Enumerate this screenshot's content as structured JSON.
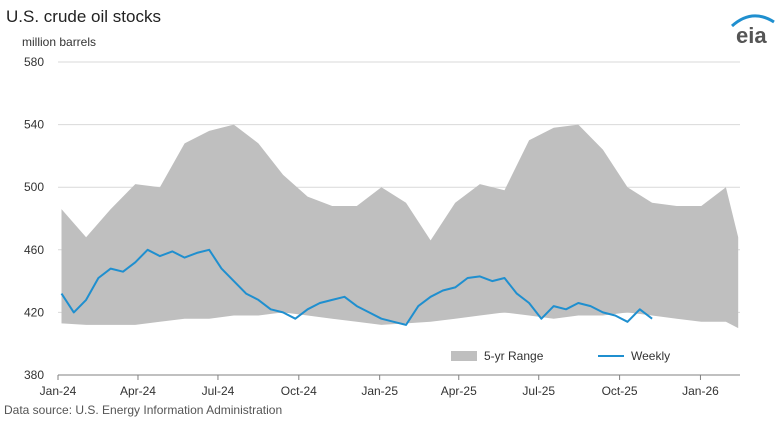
{
  "title": "U.S. crude oil stocks",
  "unit_label": "million barrels",
  "source": "Data source: U.S. Energy Information Administration",
  "logo_text": "eia",
  "colors": {
    "range": "#bfbfbf",
    "weekly": "#1f8fcf",
    "grid": "#d9d9d9",
    "axis": "#808080",
    "logo": "#555555",
    "logo_accent": "#1f8fcf"
  },
  "chart_data": {
    "type": "area",
    "title": "U.S. crude oil stocks",
    "ylabel": "million barrels",
    "xlabel": "",
    "ylim": [
      380,
      580
    ],
    "yticks": [
      380,
      420,
      460,
      500,
      540,
      580
    ],
    "xlim": [
      "2024-01-01",
      "2026-02-15"
    ],
    "xticks": [
      {
        "label": "Jan-24",
        "date": "2024-01-01"
      },
      {
        "label": "Apr-24",
        "date": "2024-04-01"
      },
      {
        "label": "Jul-24",
        "date": "2024-07-01"
      },
      {
        "label": "Oct-24",
        "date": "2024-10-01"
      },
      {
        "label": "Jan-25",
        "date": "2025-01-01"
      },
      {
        "label": "Apr-25",
        "date": "2025-04-01"
      },
      {
        "label": "Jul-25",
        "date": "2025-07-01"
      },
      {
        "label": "Oct-25",
        "date": "2025-10-01"
      },
      {
        "label": "Jan-26",
        "date": "2026-01-01"
      }
    ],
    "grid": true,
    "legend_position": "bottom-right",
    "series": [
      {
        "name": "5-yr Range",
        "kind": "band",
        "x": [
          "2024-01-05",
          "2024-02-02",
          "2024-03-01",
          "2024-03-29",
          "2024-04-26",
          "2024-05-24",
          "2024-06-21",
          "2024-07-19",
          "2024-08-16",
          "2024-09-13",
          "2024-10-11",
          "2024-11-08",
          "2024-12-06",
          "2025-01-03",
          "2025-01-31",
          "2025-02-28",
          "2025-03-28",
          "2025-04-25",
          "2025-05-23",
          "2025-06-20",
          "2025-07-18",
          "2025-08-15",
          "2025-09-12",
          "2025-10-10",
          "2025-11-07",
          "2025-12-05",
          "2026-01-02",
          "2026-01-30",
          "2026-02-13"
        ],
        "upper": [
          486,
          468,
          486,
          502,
          500,
          528,
          536,
          540,
          528,
          508,
          494,
          488,
          488,
          500,
          490,
          466,
          490,
          502,
          498,
          530,
          538,
          540,
          524,
          500,
          490,
          488,
          488,
          500,
          468
        ],
        "lower": [
          413,
          412,
          412,
          412,
          414,
          416,
          416,
          418,
          418,
          420,
          418,
          416,
          414,
          412,
          413,
          414,
          416,
          418,
          420,
          418,
          416,
          418,
          418,
          420,
          418,
          416,
          414,
          414,
          410
        ]
      },
      {
        "name": "Weekly",
        "kind": "line",
        "x": [
          "2024-01-05",
          "2024-01-19",
          "2024-02-02",
          "2024-02-16",
          "2024-03-01",
          "2024-03-15",
          "2024-03-29",
          "2024-04-12",
          "2024-04-26",
          "2024-05-10",
          "2024-05-24",
          "2024-06-07",
          "2024-06-21",
          "2024-07-05",
          "2024-07-19",
          "2024-08-02",
          "2024-08-16",
          "2024-08-30",
          "2024-09-13",
          "2024-09-27",
          "2024-10-11",
          "2024-10-25",
          "2024-11-08",
          "2024-11-22",
          "2024-12-06",
          "2024-12-20",
          "2025-01-03",
          "2025-01-17",
          "2025-01-31",
          "2025-02-14",
          "2025-02-28",
          "2025-03-14",
          "2025-03-28",
          "2025-04-11",
          "2025-04-25",
          "2025-05-09",
          "2025-05-23",
          "2025-06-06",
          "2025-06-20",
          "2025-07-04",
          "2025-07-18",
          "2025-08-01",
          "2025-08-15",
          "2025-08-29",
          "2025-09-12",
          "2025-09-26",
          "2025-10-10",
          "2025-10-24",
          "2025-11-07"
        ],
        "y": [
          432,
          420,
          428,
          442,
          448,
          446,
          452,
          460,
          456,
          459,
          455,
          458,
          460,
          448,
          440,
          432,
          428,
          422,
          420,
          416,
          422,
          426,
          428,
          430,
          424,
          420,
          416,
          414,
          412,
          424,
          430,
          434,
          436,
          442,
          443,
          440,
          442,
          432,
          426,
          416,
          424,
          422,
          426,
          424,
          420,
          418,
          414,
          422,
          416
        ]
      }
    ]
  }
}
